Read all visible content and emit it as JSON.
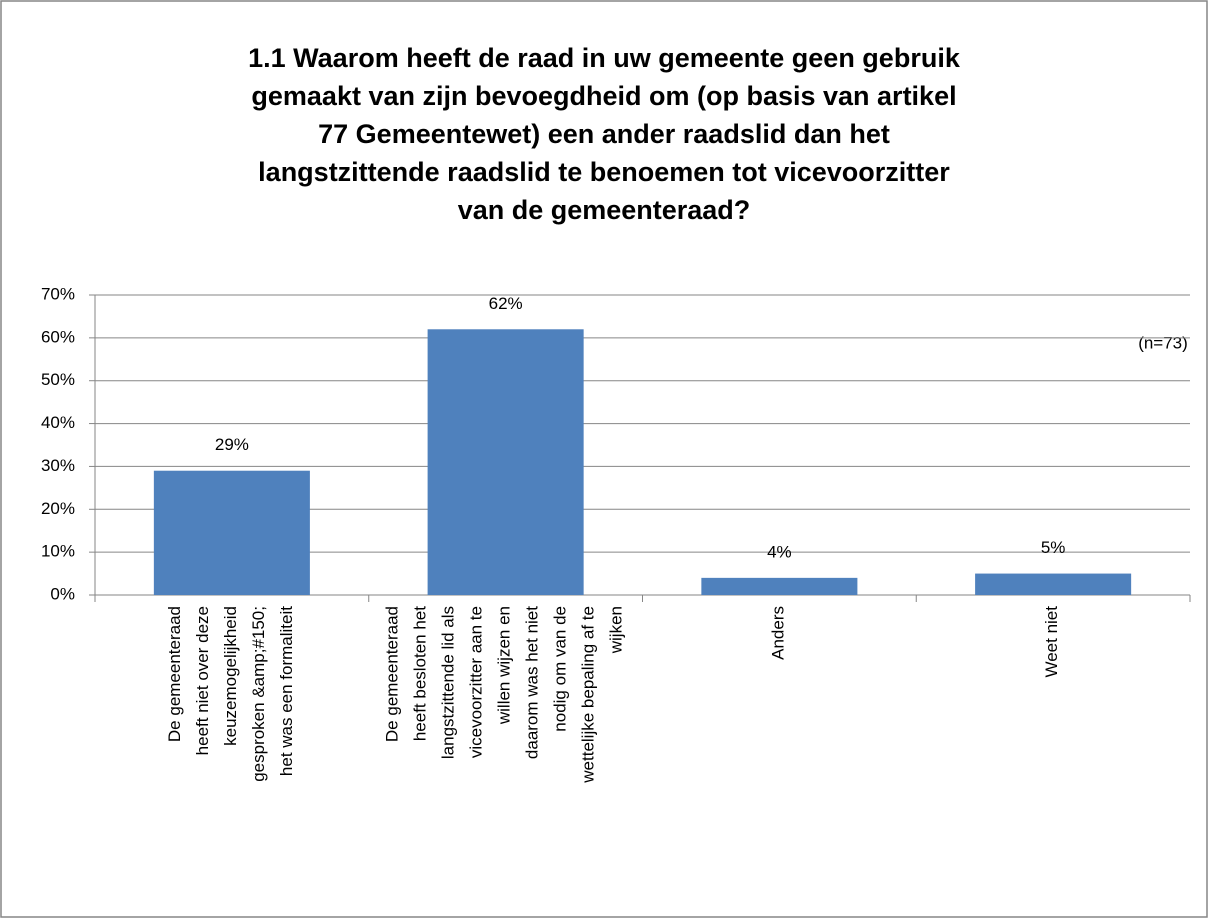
{
  "chart_data": {
    "type": "bar",
    "title": "1.1 Waarom heeft de raad in uw gemeente geen gebruik gemaakt van zijn bevoegdheid om (op basis van  artikel 77 Gemeentewet) een ander raadslid dan het langstzittende raadslid te benoemen tot vicevoorzitter van de gemeenteraad?",
    "annotation": "(n=73)",
    "categories": [
      "De gemeenteraad heeft niet over deze keuzemogelijkheid gesproken &amp;#150; het was een formaliteit",
      "De gemeenteraad heeft besloten het langstzittende lid als vicevoorzitter aan te willen wijzen en daarom was het niet nodig om van de wettelijke bepaling af te wijken",
      "Anders",
      "Weet niet"
    ],
    "values": [
      29,
      62,
      4,
      5
    ],
    "value_labels": [
      "29%",
      "62%",
      "4%",
      "5%"
    ],
    "color": "#4f81bd",
    "ylim": [
      0,
      70
    ],
    "yticks": [
      {
        "value": 0,
        "label": "0%"
      },
      {
        "value": 10,
        "label": "10%"
      },
      {
        "value": 20,
        "label": "20%"
      },
      {
        "value": 30,
        "label": "30%"
      },
      {
        "value": 40,
        "label": "40%"
      },
      {
        "value": 50,
        "label": "50%"
      },
      {
        "value": 60,
        "label": "60%"
      },
      {
        "value": 70,
        "label": "70%"
      }
    ],
    "grid": true
  }
}
